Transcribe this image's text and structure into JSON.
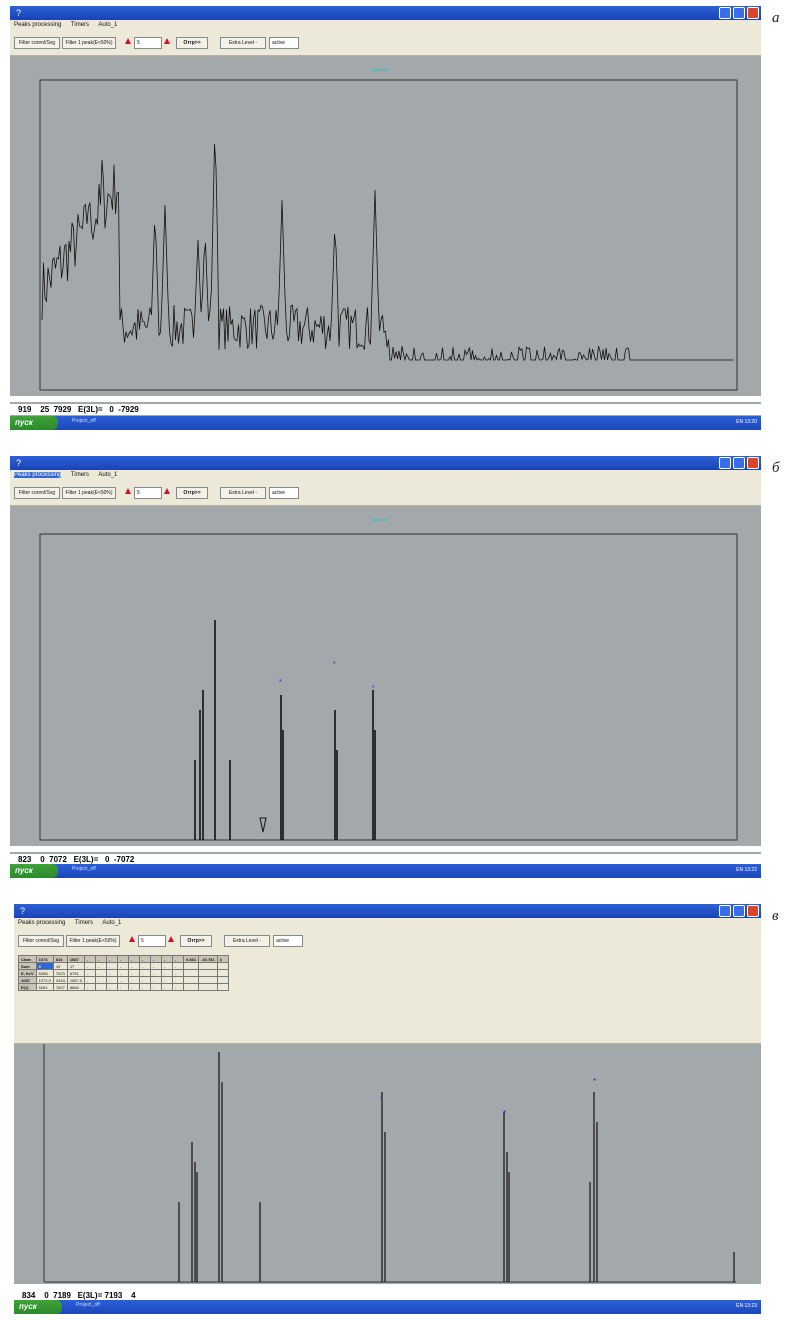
{
  "panels": [
    {
      "letter": "a",
      "window": {
        "title": "?"
      },
      "menu": [
        "Peaks processing",
        "Timers",
        "Auto_1"
      ],
      "toolbar": {
        "filter_config": "Filter conrol/Svg",
        "filter_peak": "Filter 1 peak(E<50%)",
        "spin_value": "5",
        "graph_button": "Отгр>>",
        "extra_level": "Extra Level -",
        "input_value": "active"
      },
      "plot_label": "spectrum",
      "status": "919    25  7929   E(3L)=   0  -7929",
      "taskbar": {
        "start": "пуск",
        "task": "Project_off",
        "tray": "EN  13:20"
      }
    },
    {
      "letter": "б",
      "window": {
        "title": "?"
      },
      "menu": [
        "Peaks processing",
        "Timers",
        "Auto_1"
      ],
      "toolbar": {
        "filter_config": "Filter conrol/Svg",
        "filter_peak": "Filter 1 peak(E<50%)",
        "spin_value": "5",
        "graph_button": "Отгр>>",
        "extra_level": "Extra Level -",
        "input_value": "active"
      },
      "plot_label": "spectrum",
      "status": "823    0  7072   E(3L)=   0  -7072",
      "taskbar": {
        "start": "пуск",
        "task": "Project_off",
        "tray": "EN  13:22"
      }
    },
    {
      "letter": "в",
      "window": {
        "title": "?"
      },
      "menu": [
        "Peaks processing",
        "Timers",
        "Auto_1"
      ],
      "toolbar": {
        "filter_config": "Filter conrol/Svg",
        "filter_peak": "Filter 1 peak(E<50%)",
        "spin_value": "5",
        "graph_button": "Отгр>>",
        "extra_level": "Extra Level -",
        "input_value": "active"
      },
      "table": [
        [
          "Chan",
          "1073",
          "816",
          "1087",
          "-",
          "-",
          "-",
          "-",
          "-",
          "-",
          "-",
          "-",
          "-",
          "0.861",
          "-30.781",
          "3"
        ],
        [
          "Sum",
          "8",
          "19",
          "17",
          "-",
          "-",
          "-",
          "-",
          "-",
          "-",
          "-",
          "-",
          "-",
          "",
          "",
          ""
        ],
        [
          "E, KeV",
          "5268",
          "7523",
          "8751",
          "-",
          "-",
          "-",
          "-",
          "-",
          "-",
          "-",
          "-",
          "-",
          "",
          "",
          ""
        ],
        [
          "1087",
          "1072.9",
          "3154",
          "1087.5",
          "-",
          "-",
          "-",
          "-",
          "-",
          "-",
          "-",
          "-",
          "-",
          "",
          "",
          ""
        ],
        [
          "E(1)",
          "5261",
          "7627",
          "8666",
          "-",
          "-",
          "-",
          "-",
          "-",
          "-",
          "-",
          "-",
          "-",
          "",
          "",
          ""
        ]
      ],
      "status": "834    0  7189   E(3L)= 7193    4",
      "taskbar": {
        "start": "пуск",
        "task": "Project_off",
        "tray": "EN  13:23"
      }
    }
  ],
  "colors": {
    "plot_bg": "#a3a8aa",
    "line": "#111111",
    "marker": "#3322cc",
    "accent": "#00c8d8"
  }
}
